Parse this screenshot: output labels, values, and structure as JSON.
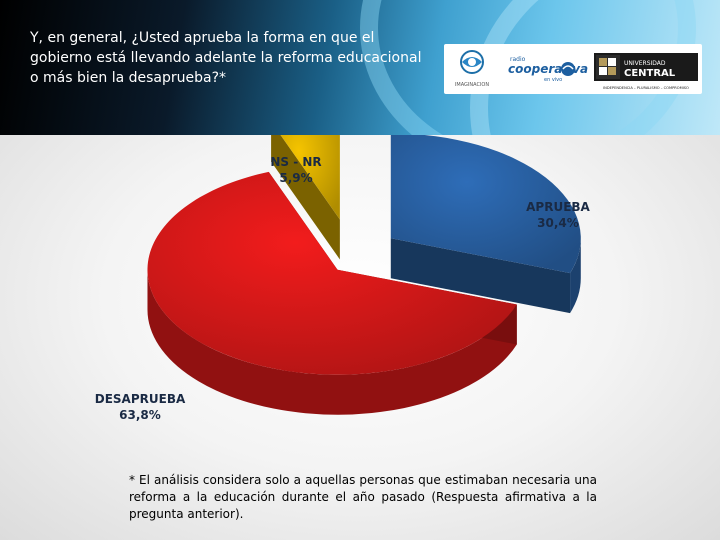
{
  "header": {
    "question": "Y, en general, ¿Usted aprueba la forma en que el gobierno está llevando adelante la reforma educacional o más bien la desaprueba?*"
  },
  "logos": {
    "imaginacion_text": "IMAGINACION",
    "cooperativa_small": "radio",
    "cooperativa_text": "cooperativa",
    "cooperativa_sub": "en vivo",
    "universidad_line1": "UNIVERSIDAD",
    "universidad_line2": "CENTRAL",
    "universidad_motto": "INDEPENDENCIA – PLURALISMO – COMPROMISO"
  },
  "chart_data": {
    "type": "pie",
    "slices": [
      {
        "label": "APRUEBA",
        "value": 30.4,
        "value_text": "30,4%",
        "color": "#2e6db8"
      },
      {
        "label": "DESAPRUEBA",
        "value": 63.8,
        "value_text": "63,8%",
        "color": "#f21c1c"
      },
      {
        "label": "NS - NR",
        "value": 5.9,
        "value_text": "5,9%",
        "color": "#f5c400"
      }
    ],
    "style": "3d-exploded"
  },
  "footnote": "* El análisis considera solo a aquellas personas que estimaban necesaria una reforma a la educación durante el año pasado (Respuesta afirmativa a la pregunta anterior)."
}
